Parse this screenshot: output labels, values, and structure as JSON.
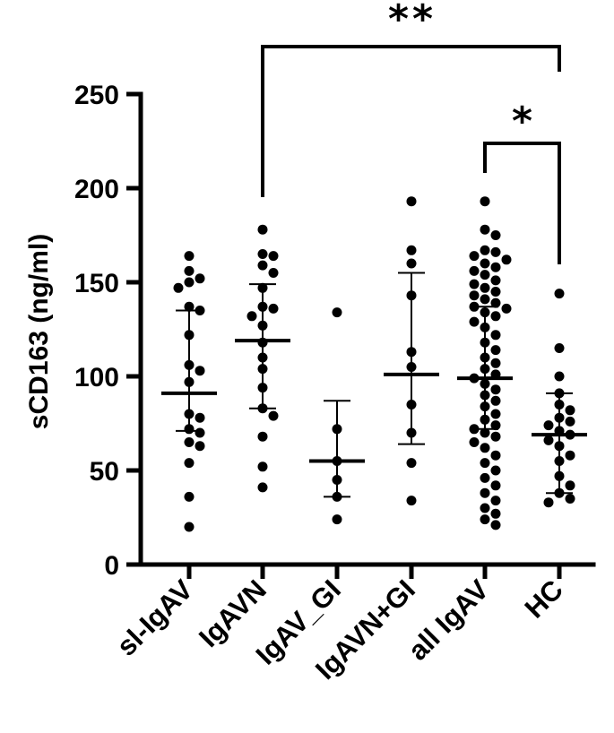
{
  "chart_data": {
    "type": "scatter",
    "ylabel": "sCD163 (ng/ml)",
    "ylim": [
      0,
      250
    ],
    "yticks": [
      0,
      50,
      100,
      150,
      200,
      250
    ],
    "ytick_labels": [
      "0",
      "50",
      "100",
      "150",
      "200",
      "250"
    ],
    "categories": [
      "sl-IgAV",
      "IgAVN",
      "IgAV_GI",
      "IgAVN+GI",
      "all IgAV",
      "HC"
    ],
    "groups": [
      {
        "name": "sl-IgAV",
        "median": 91,
        "lower": 71,
        "upper": 135,
        "points": [
          164,
          156,
          152,
          150,
          147,
          137,
          135,
          122,
          106,
          103,
          97,
          80,
          78,
          72,
          70,
          65,
          63,
          54,
          36,
          20
        ]
      },
      {
        "name": "IgAVN",
        "median": 119,
        "lower": 83,
        "upper": 149,
        "points": [
          178,
          165,
          164,
          159,
          155,
          147,
          137,
          136,
          132,
          127,
          118,
          110,
          104,
          94,
          83,
          79,
          68,
          52,
          41
        ]
      },
      {
        "name": "IgAV_GI",
        "median": 55,
        "lower": 36,
        "upper": 87,
        "points": [
          134,
          72,
          55,
          45,
          36,
          24
        ]
      },
      {
        "name": "IgAVN+GI",
        "median": 101,
        "lower": 64,
        "upper": 155,
        "points": [
          193,
          167,
          160,
          143,
          113,
          105,
          85,
          70,
          54,
          34
        ]
      },
      {
        "name": "all IgAV",
        "median": 99,
        "lower": 72,
        "upper": 137,
        "points": [
          193,
          178,
          175,
          167,
          166,
          164,
          162,
          160,
          158,
          156,
          154,
          151,
          149,
          147,
          145,
          143,
          141,
          139,
          137,
          136,
          134,
          132,
          129,
          126,
          122,
          118,
          114,
          110,
          107,
          104,
          101,
          99,
          96,
          93,
          90,
          87,
          84,
          80,
          77,
          74,
          72,
          70,
          68,
          65,
          62,
          58,
          54,
          50,
          46,
          42,
          38,
          34,
          30,
          27,
          24,
          21
        ]
      },
      {
        "name": "HC",
        "median": 69,
        "lower": 38,
        "upper": 91,
        "points": [
          144,
          115,
          100,
          91,
          85,
          82,
          78,
          76,
          74,
          71,
          69,
          66,
          63,
          58,
          55,
          47,
          42,
          38,
          35,
          33
        ]
      }
    ],
    "comparisons": [
      {
        "from": "IgAVN",
        "to": "HC",
        "label": "**"
      },
      {
        "from": "all IgAV",
        "to": "HC",
        "label": "*"
      }
    ],
    "grid": false,
    "legend": "none"
  }
}
